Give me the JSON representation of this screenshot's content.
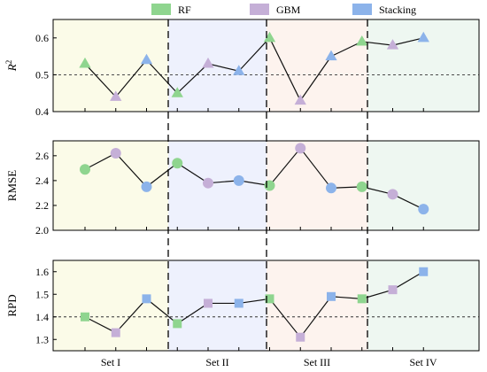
{
  "chart_data": {
    "type": "line",
    "legend": {
      "placement": "top",
      "entries": [
        {
          "name": "RF",
          "color": "#8fd58f"
        },
        {
          "name": "GBM",
          "color": "#c5afd7"
        },
        {
          "name": "Stacking",
          "color": "#8cb3ea"
        }
      ]
    },
    "sets": [
      "Set I",
      "Set II",
      "Set III",
      "Set IV"
    ],
    "set_colors": [
      "#fbfbe8",
      "#eef1fd",
      "#fdf3ee",
      "#eef7f1"
    ],
    "x_order": [
      "RF",
      "GBM",
      "Stacking",
      "RF",
      "GBM",
      "Stacking",
      "RF",
      "GBM",
      "Stacking",
      "RF",
      "GBM",
      "Stacking"
    ],
    "panels": [
      {
        "ylabel": "R2",
        "ylabel_base": "R",
        "ylabel_sup": "2",
        "marker": "triangle",
        "ylim": [
          0.4,
          0.65
        ],
        "yticks": [
          "0.4",
          "0.5",
          "0.6"
        ],
        "ytick_values": [
          0.4,
          0.5,
          0.6
        ],
        "reference_line": 0.5,
        "values": [
          0.53,
          0.44,
          0.54,
          0.45,
          0.53,
          0.51,
          0.6,
          0.43,
          0.55,
          0.59,
          0.58,
          0.6
        ]
      },
      {
        "ylabel": "RMSE",
        "marker": "circle",
        "ylim": [
          2.0,
          2.72
        ],
        "yticks": [
          "2.0",
          "2.2",
          "2.4",
          "2.6"
        ],
        "ytick_values": [
          2.0,
          2.2,
          2.4,
          2.6
        ],
        "reference_line": null,
        "values": [
          2.49,
          2.62,
          2.35,
          2.54,
          2.38,
          2.4,
          2.36,
          2.66,
          2.34,
          2.35,
          2.29,
          2.17
        ]
      },
      {
        "ylabel": "RPD",
        "marker": "square",
        "ylim": [
          1.25,
          1.65
        ],
        "yticks": [
          "1.3",
          "1.4",
          "1.5",
          "1.6"
        ],
        "ytick_values": [
          1.3,
          1.4,
          1.5,
          1.6
        ],
        "reference_line": 1.4,
        "values": [
          1.4,
          1.33,
          1.48,
          1.37,
          1.46,
          1.46,
          1.48,
          1.31,
          1.49,
          1.48,
          1.52,
          1.6
        ]
      }
    ]
  }
}
